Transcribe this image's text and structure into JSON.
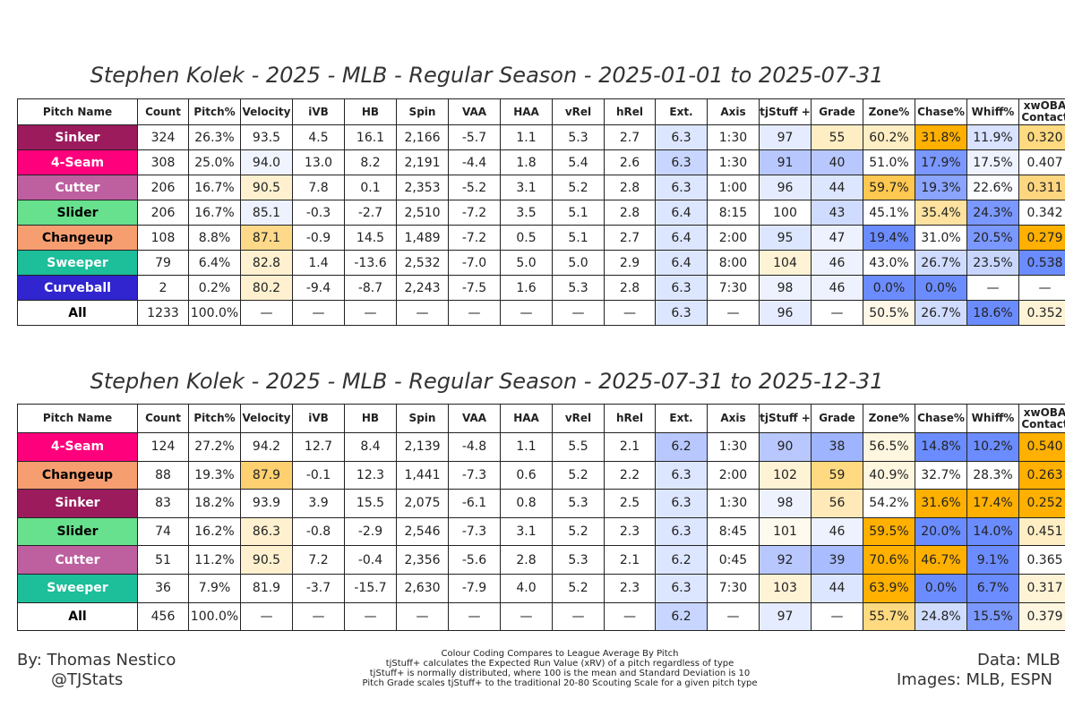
{
  "tables": [
    {
      "title": "Stephen Kolek - 2025 - MLB - Regular Season - 2025-01-01 to 2025-07-31",
      "header": [
        "Pitch Name",
        "Count",
        "Pitch%",
        "Velocity",
        "iVB",
        "HB",
        "Spin",
        "VAA",
        "HAA",
        "vRel",
        "hRel",
        "Ext.",
        "Axis",
        "tjStuff +",
        "Grade",
        "Zone%",
        "Chase%",
        "Whiff%",
        "xwOBA\nContact"
      ],
      "rows": [
        {
          "name_text": "#ffffff",
          "cells": [
            "Sinker",
            "324",
            "26.3%",
            "93.5",
            "4.5",
            "16.1",
            "2,166",
            "-5.7",
            "1.1",
            "5.3",
            "2.7",
            "6.3",
            "1:30",
            "97",
            "55",
            "60.2%",
            "31.8%",
            "11.9%",
            "0.320"
          ],
          "fills": [
            "#9b1b5d",
            null,
            null,
            null,
            null,
            null,
            null,
            null,
            null,
            null,
            null,
            "#dde6ff",
            null,
            "#e6ecff",
            "#ffeec4",
            "#ffeec4",
            "#ffb000",
            "#d9e2ff",
            "#ffda80"
          ]
        },
        {
          "name_text": "#ffffff",
          "cells": [
            "4-Seam",
            "308",
            "25.0%",
            "94.0",
            "13.0",
            "8.2",
            "2,191",
            "-4.4",
            "1.8",
            "5.4",
            "2.6",
            "6.3",
            "1:30",
            "91",
            "40",
            "51.0%",
            "17.9%",
            "17.5%",
            "0.407"
          ],
          "fills": [
            "#ff007d",
            null,
            null,
            "#f0f4ff",
            null,
            null,
            null,
            null,
            null,
            null,
            null,
            "#c8d6ff",
            null,
            "#b8c8ff",
            "#b8c8ff",
            null,
            "#7a98ff",
            "#eef2ff",
            null
          ]
        },
        {
          "name_text": "#ffffff",
          "cells": [
            "Cutter",
            "206",
            "16.7%",
            "90.5",
            "7.8",
            "0.1",
            "2,353",
            "-5.2",
            "3.1",
            "5.2",
            "2.8",
            "6.3",
            "1:00",
            "96",
            "44",
            "59.7%",
            "19.3%",
            "22.6%",
            "0.311"
          ],
          "fills": [
            "#be5fa0",
            null,
            null,
            "#fff1d0",
            null,
            null,
            null,
            null,
            null,
            null,
            null,
            "#dde6ff",
            null,
            "#e6ecff",
            "#dde6ff",
            "#ffc850",
            "#8aa4ff",
            "#fbfcff",
            "#ffd680"
          ]
        },
        {
          "name_text": "#000000",
          "cells": [
            "Slider",
            "206",
            "16.7%",
            "85.1",
            "-0.3",
            "-2.7",
            "2,510",
            "-7.2",
            "3.5",
            "5.1",
            "2.8",
            "6.4",
            "8:15",
            "100",
            "43",
            "45.1%",
            "35.4%",
            "24.3%",
            "0.342"
          ],
          "fills": [
            "#67e18d",
            null,
            null,
            "#eef2ff",
            null,
            null,
            null,
            null,
            null,
            null,
            null,
            "#dde6ff",
            null,
            null,
            "#d0dcff",
            null,
            "#ffe2a0",
            "#7a98ff",
            null
          ]
        },
        {
          "name_text": "#000000",
          "cells": [
            "Changeup",
            "108",
            "8.8%",
            "87.1",
            "-0.9",
            "14.5",
            "1,489",
            "-7.2",
            "0.5",
            "5.1",
            "2.7",
            "6.4",
            "2:00",
            "95",
            "47",
            "19.4%",
            "31.0%",
            "20.5%",
            "0.279"
          ],
          "fills": [
            "#f79e70",
            null,
            null,
            "#ffd98a",
            null,
            null,
            null,
            null,
            null,
            null,
            null,
            "#dde6ff",
            null,
            "#dde6ff",
            "#eef2ff",
            "#6b8cff",
            null,
            "#7a98ff",
            "#ffb000"
          ]
        },
        {
          "name_text": "#ffffff",
          "cells": [
            "Sweeper",
            "79",
            "6.4%",
            "82.8",
            "1.4",
            "-13.6",
            "2,532",
            "-7.0",
            "5.0",
            "5.0",
            "2.9",
            "6.4",
            "8:00",
            "104",
            "46",
            "43.0%",
            "26.7%",
            "23.5%",
            "0.538"
          ],
          "fills": [
            "#1dbe9a",
            null,
            null,
            "#fff1d0",
            null,
            null,
            null,
            null,
            null,
            null,
            null,
            "#dde6ff",
            null,
            "#fff3d6",
            "#eef2ff",
            null,
            "#d0dcff",
            "#c8d6ff",
            "#6b8cff"
          ]
        },
        {
          "name_text": "#ffffff",
          "cells": [
            "Curveball",
            "2",
            "0.2%",
            "80.2",
            "-9.4",
            "-8.7",
            "2,243",
            "-7.5",
            "1.6",
            "5.3",
            "2.8",
            "6.3",
            "7:30",
            "98",
            "46",
            "0.0%",
            "0.0%",
            "—",
            "—"
          ],
          "fills": [
            "#3025ce",
            null,
            null,
            "#fff1d0",
            null,
            null,
            null,
            null,
            null,
            null,
            null,
            "#dde6ff",
            null,
            "#eef2ff",
            "#eef2ff",
            "#6b8cff",
            "#6b8cff",
            null,
            null
          ]
        },
        {
          "name_text": "#000000",
          "cells": [
            "All",
            "1233",
            "100.0%",
            "—",
            "—",
            "—",
            "—",
            "—",
            "—",
            "—",
            "—",
            "6.3",
            "—",
            "96",
            "—",
            "50.5%",
            "26.7%",
            "18.6%",
            "0.352"
          ],
          "fills": [
            null,
            null,
            null,
            null,
            null,
            null,
            null,
            null,
            null,
            null,
            null,
            "#dde6ff",
            null,
            "#e6ecff",
            null,
            "#fff8e8",
            "#d0dcff",
            "#6b8cff",
            "#fff3d6"
          ]
        }
      ]
    },
    {
      "title": "Stephen Kolek - 2025 - MLB - Regular Season - 2025-07-31 to 2025-12-31",
      "header": [
        "Pitch Name",
        "Count",
        "Pitch%",
        "Velocity",
        "iVB",
        "HB",
        "Spin",
        "VAA",
        "HAA",
        "vRel",
        "hRel",
        "Ext.",
        "Axis",
        "tjStuff +",
        "Grade",
        "Zone%",
        "Chase%",
        "Whiff%",
        "xwOBA\nContact"
      ],
      "rows": [
        {
          "name_text": "#ffffff",
          "cells": [
            "4-Seam",
            "124",
            "27.2%",
            "94.2",
            "12.7",
            "8.4",
            "2,139",
            "-4.8",
            "1.1",
            "5.5",
            "2.1",
            "6.2",
            "1:30",
            "90",
            "38",
            "56.5%",
            "14.8%",
            "10.2%",
            "0.540"
          ],
          "fills": [
            "#ff007d",
            null,
            null,
            null,
            null,
            null,
            null,
            null,
            null,
            null,
            null,
            "#b8c8ff",
            null,
            "#b8c8ff",
            "#9fb4ff",
            "#fff6e0",
            "#6b8cff",
            "#6b8cff",
            "#ffb000"
          ]
        },
        {
          "name_text": "#000000",
          "cells": [
            "Changeup",
            "88",
            "19.3%",
            "87.9",
            "-0.1",
            "12.3",
            "1,441",
            "-7.3",
            "0.6",
            "5.2",
            "2.2",
            "6.3",
            "2:00",
            "102",
            "59",
            "40.9%",
            "32.7%",
            "28.3%",
            "0.263"
          ],
          "fills": [
            "#f79e70",
            null,
            null,
            "#ffd070",
            null,
            null,
            null,
            null,
            null,
            null,
            null,
            "#dde6ff",
            null,
            "#fff3d6",
            "#ffda80",
            "#fff6e0",
            null,
            null,
            "#ffb000"
          ]
        },
        {
          "name_text": "#ffffff",
          "cells": [
            "Sinker",
            "83",
            "18.2%",
            "93.9",
            "3.9",
            "15.5",
            "2,075",
            "-6.1",
            "0.8",
            "5.3",
            "2.5",
            "6.3",
            "1:30",
            "98",
            "56",
            "54.2%",
            "31.6%",
            "17.4%",
            "0.252"
          ],
          "fills": [
            "#9b1b5d",
            null,
            null,
            null,
            null,
            null,
            null,
            null,
            null,
            null,
            null,
            "#dde6ff",
            null,
            "#eef2ff",
            "#ffe9b8",
            null,
            "#ffb000",
            "#ffb000",
            "#ffb000"
          ]
        },
        {
          "name_text": "#000000",
          "cells": [
            "Slider",
            "74",
            "16.2%",
            "86.3",
            "-0.8",
            "-2.9",
            "2,546",
            "-7.3",
            "3.1",
            "5.2",
            "2.3",
            "6.3",
            "8:45",
            "101",
            "46",
            "59.5%",
            "20.0%",
            "14.0%",
            "0.451"
          ],
          "fills": [
            "#67e18d",
            null,
            null,
            "#fff1d0",
            null,
            null,
            null,
            null,
            null,
            null,
            null,
            "#dde6ff",
            null,
            "#fffaee",
            "#eef2ff",
            "#ffb000",
            "#6b8cff",
            "#6b8cff",
            "#ffeec4"
          ]
        },
        {
          "name_text": "#ffffff",
          "cells": [
            "Cutter",
            "51",
            "11.2%",
            "90.5",
            "7.2",
            "-0.4",
            "2,356",
            "-5.6",
            "2.8",
            "5.3",
            "2.1",
            "6.2",
            "0:45",
            "92",
            "39",
            "70.6%",
            "46.7%",
            "9.1%",
            "0.365"
          ],
          "fills": [
            "#be5fa0",
            null,
            null,
            "#fff1d0",
            null,
            null,
            null,
            null,
            null,
            null,
            null,
            "#dde6ff",
            null,
            "#b8c8ff",
            "#a8bcff",
            "#ffb000",
            "#ffb000",
            "#6b8cff",
            null
          ]
        },
        {
          "name_text": "#ffffff",
          "cells": [
            "Sweeper",
            "36",
            "7.9%",
            "81.9",
            "-3.7",
            "-15.7",
            "2,630",
            "-7.9",
            "4.0",
            "5.2",
            "2.3",
            "6.3",
            "7:30",
            "103",
            "44",
            "63.9%",
            "0.0%",
            "6.7%",
            "0.317"
          ],
          "fills": [
            "#1dbe9a",
            null,
            null,
            null,
            null,
            null,
            null,
            null,
            null,
            null,
            null,
            "#dde6ff",
            null,
            "#fff3d6",
            "#dde6ff",
            "#ffb000",
            "#6b8cff",
            "#6b8cff",
            "#fff3d6"
          ]
        },
        {
          "name_text": "#000000",
          "cells": [
            "All",
            "456",
            "100.0%",
            "—",
            "—",
            "—",
            "—",
            "—",
            "—",
            "—",
            "—",
            "6.2",
            "—",
            "97",
            "—",
            "55.7%",
            "24.8%",
            "15.5%",
            "0.379"
          ],
          "fills": [
            null,
            null,
            null,
            null,
            null,
            null,
            null,
            null,
            null,
            null,
            null,
            "#c8d6ff",
            null,
            "#e6ecff",
            null,
            "#ffda80",
            "#d0dcff",
            "#7a98ff",
            "#fff6e0"
          ]
        }
      ]
    }
  ],
  "footer": {
    "author": "By: Thomas Nestico",
    "handle": "@TJStats",
    "notes": [
      "Colour Coding Compares to League Average By Pitch",
      "tjStuff+ calculates the Expected Run Value (xRV) of a pitch regardless of type",
      "tjStuff+ is normally distributed, where 100 is the mean and Standard Deviation is 10",
      "Pitch Grade scales tjStuff+ to the traditional 20-80 Scouting Scale for a given pitch type"
    ],
    "data": "Data: MLB",
    "images": "Images: MLB, ESPN"
  }
}
